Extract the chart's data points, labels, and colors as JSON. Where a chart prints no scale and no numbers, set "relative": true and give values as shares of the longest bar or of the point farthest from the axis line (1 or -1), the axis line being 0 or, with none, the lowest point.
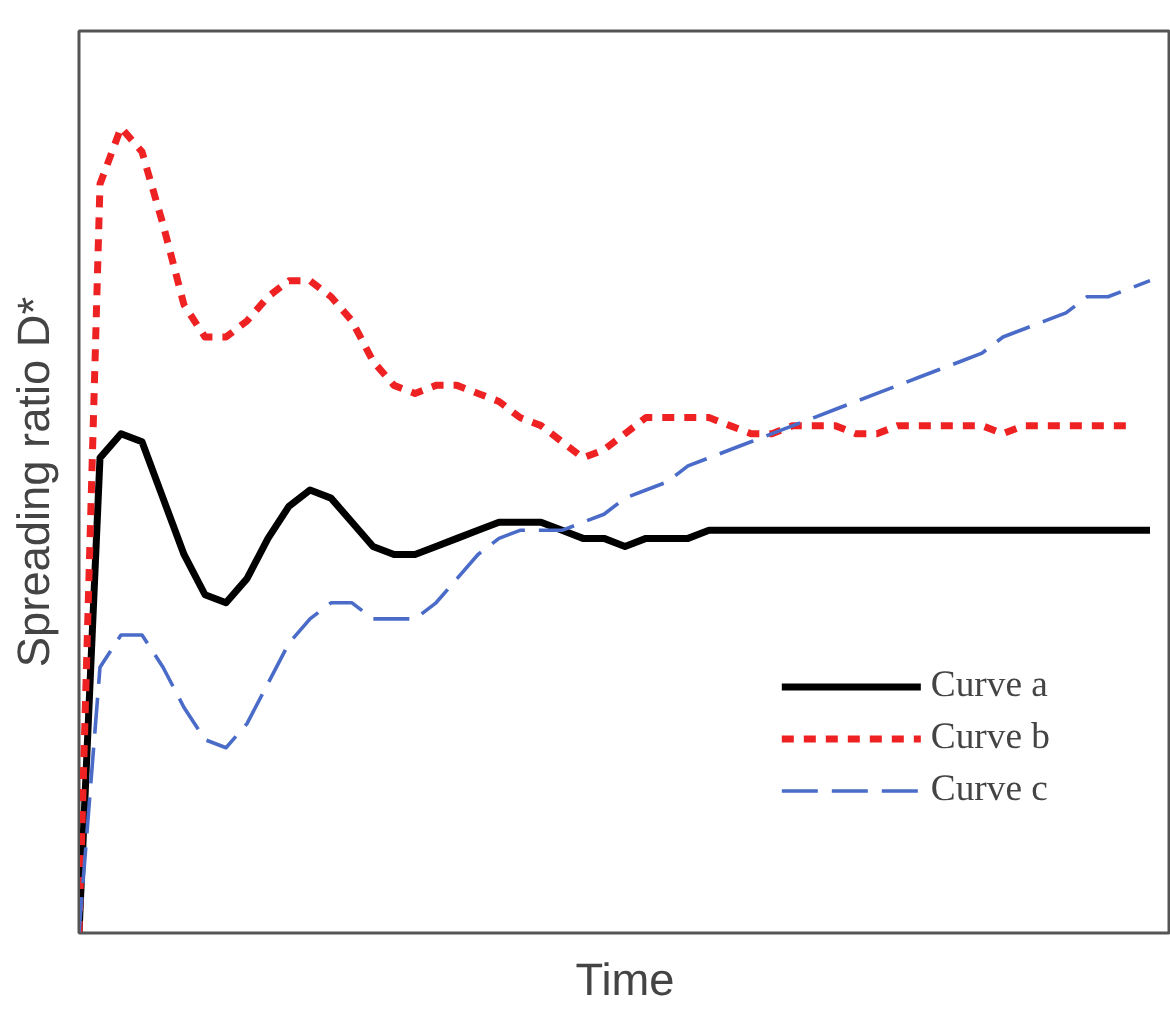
{
  "chart_data": {
    "type": "line",
    "relative": true,
    "xlabel": "Time",
    "ylabel": "Spreading ratio D*",
    "legend": "bottom right",
    "grid": false,
    "marker": "none",
    "categories": [
      null,
      null,
      null,
      null,
      null,
      null,
      null,
      null,
      null,
      null,
      null,
      null,
      null,
      null,
      null,
      null,
      null,
      null,
      null,
      null,
      null,
      null,
      null,
      null,
      null,
      null,
      null,
      null,
      null,
      null,
      null,
      null,
      null,
      null,
      null,
      null,
      null,
      null,
      null,
      null,
      null,
      null,
      null,
      null,
      null,
      null,
      null,
      null,
      null,
      null,
      null,
      null
    ],
    "series": [
      {
        "name": "Curve a",
        "color": "#000000",
        "line_style": "solid",
        "values": [
          0,
          0.59,
          0.62,
          0.61,
          0.54,
          0.47,
          0.42,
          0.41,
          0.44,
          0.49,
          0.53,
          0.55,
          0.54,
          0.51,
          0.48,
          0.47,
          0.47,
          0.48,
          0.49,
          0.5,
          0.51,
          0.51,
          0.51,
          0.5,
          0.49,
          0.49,
          0.48,
          0.49,
          0.49,
          0.49,
          0.5,
          0.5,
          0.5,
          0.5,
          0.5,
          0.5,
          0.5,
          0.5,
          0.5,
          0.5,
          0.5,
          0.5,
          0.5,
          0.5,
          0.5,
          0.5,
          0.5,
          0.5,
          0.5,
          0.5,
          0.5,
          0.5
        ]
      },
      {
        "name": "Curve b",
        "color": "#ee2222",
        "line_style": "dashed",
        "values": [
          0,
          0.93,
          1.0,
          0.97,
          0.88,
          0.78,
          0.74,
          0.74,
          0.76,
          0.79,
          0.81,
          0.81,
          0.79,
          0.76,
          0.71,
          0.68,
          0.67,
          0.68,
          0.68,
          0.67,
          0.66,
          0.64,
          0.63,
          0.61,
          0.59,
          0.6,
          0.62,
          0.64,
          0.64,
          0.64,
          0.64,
          0.63,
          0.62,
          0.62,
          0.63,
          0.63,
          0.63,
          0.62,
          0.62,
          0.63,
          0.63,
          0.63,
          0.63,
          0.63,
          0.62,
          0.63,
          0.63,
          0.63,
          0.63,
          0.63,
          0.63,
          null
        ]
      },
      {
        "name": "Curve c",
        "color": "#4a6cc8",
        "line_style": "longdash",
        "values": [
          0,
          0.33,
          0.37,
          0.37,
          0.33,
          0.28,
          0.24,
          0.23,
          0.26,
          0.31,
          0.36,
          0.39,
          0.41,
          0.41,
          0.39,
          0.39,
          0.39,
          0.41,
          0.44,
          0.47,
          0.49,
          0.5,
          0.5,
          0.5,
          0.51,
          0.52,
          0.54,
          0.55,
          0.56,
          0.58,
          0.59,
          0.6,
          0.61,
          0.62,
          0.63,
          0.64,
          0.65,
          0.66,
          0.67,
          0.68,
          0.69,
          0.7,
          0.71,
          0.72,
          0.74,
          0.75,
          0.76,
          0.77,
          0.79,
          0.79,
          0.8,
          0.81
        ]
      }
    ]
  }
}
